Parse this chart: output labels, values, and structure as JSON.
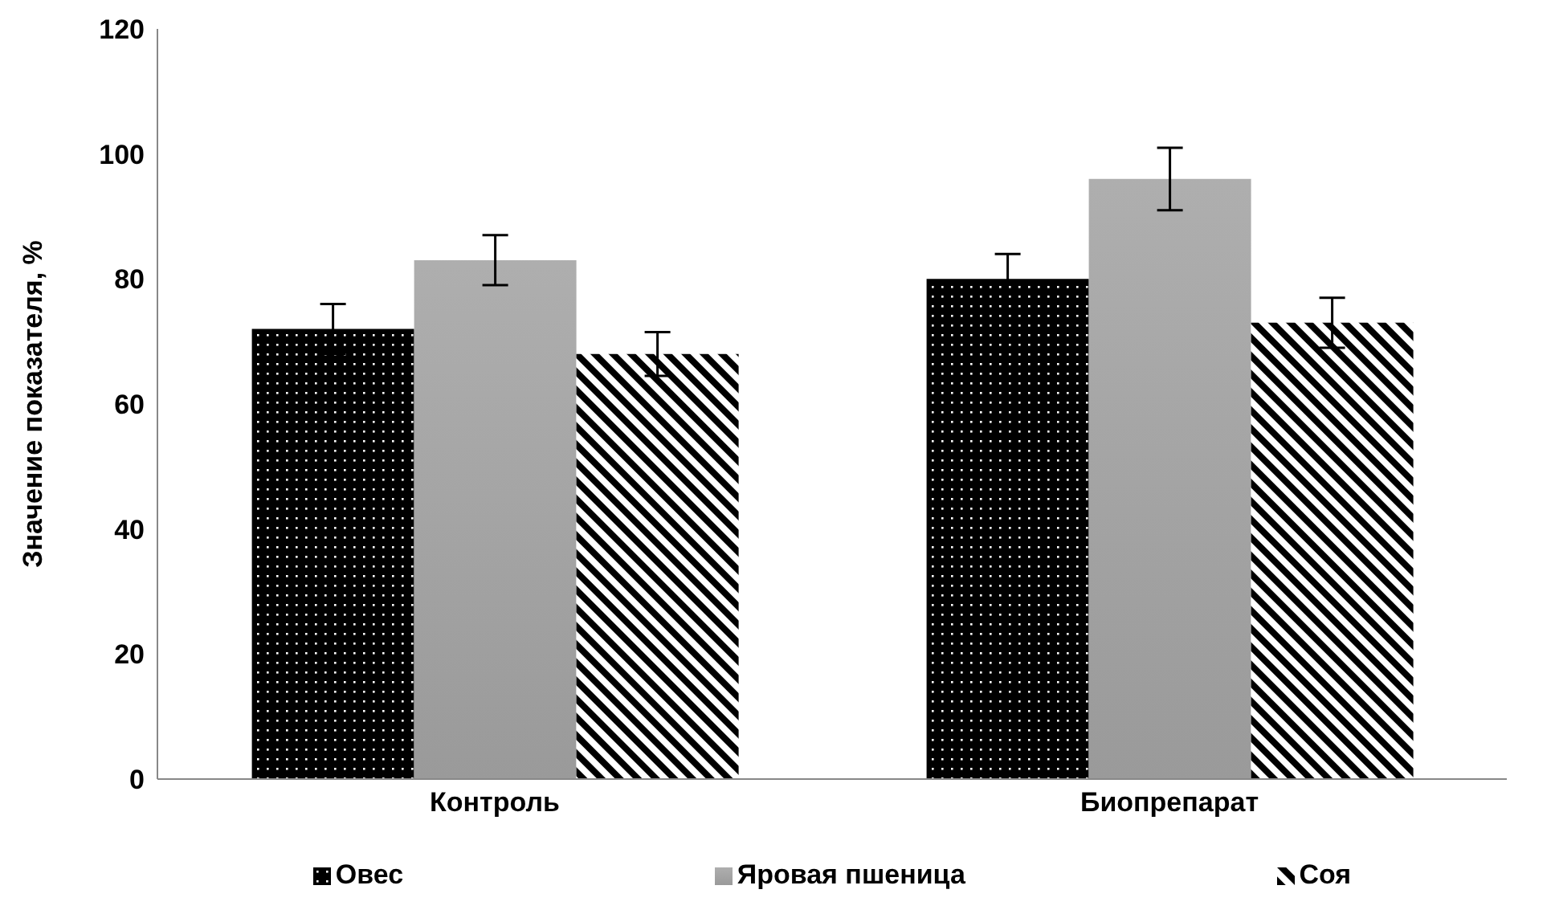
{
  "chart_data": {
    "type": "bar",
    "ylabel": "Значение показателя, %",
    "categories": [
      "Контроль",
      "Биопрепарат"
    ],
    "series": [
      {
        "name": "Овес",
        "color": "#000000",
        "values": [
          72,
          80
        ],
        "errors": [
          4,
          4
        ]
      },
      {
        "name": "Яровая пшеница",
        "color": "#9a9a9a",
        "values": [
          83,
          96
        ],
        "errors": [
          4,
          5
        ]
      },
      {
        "name": "Соя",
        "color": "#000000",
        "values": [
          68,
          73
        ],
        "errors": [
          3.5,
          4
        ]
      }
    ],
    "ylim": [
      0,
      120
    ],
    "yticks": [
      0,
      20,
      40,
      60,
      80,
      100,
      120
    ],
    "grid": false,
    "legend": "bottom"
  }
}
